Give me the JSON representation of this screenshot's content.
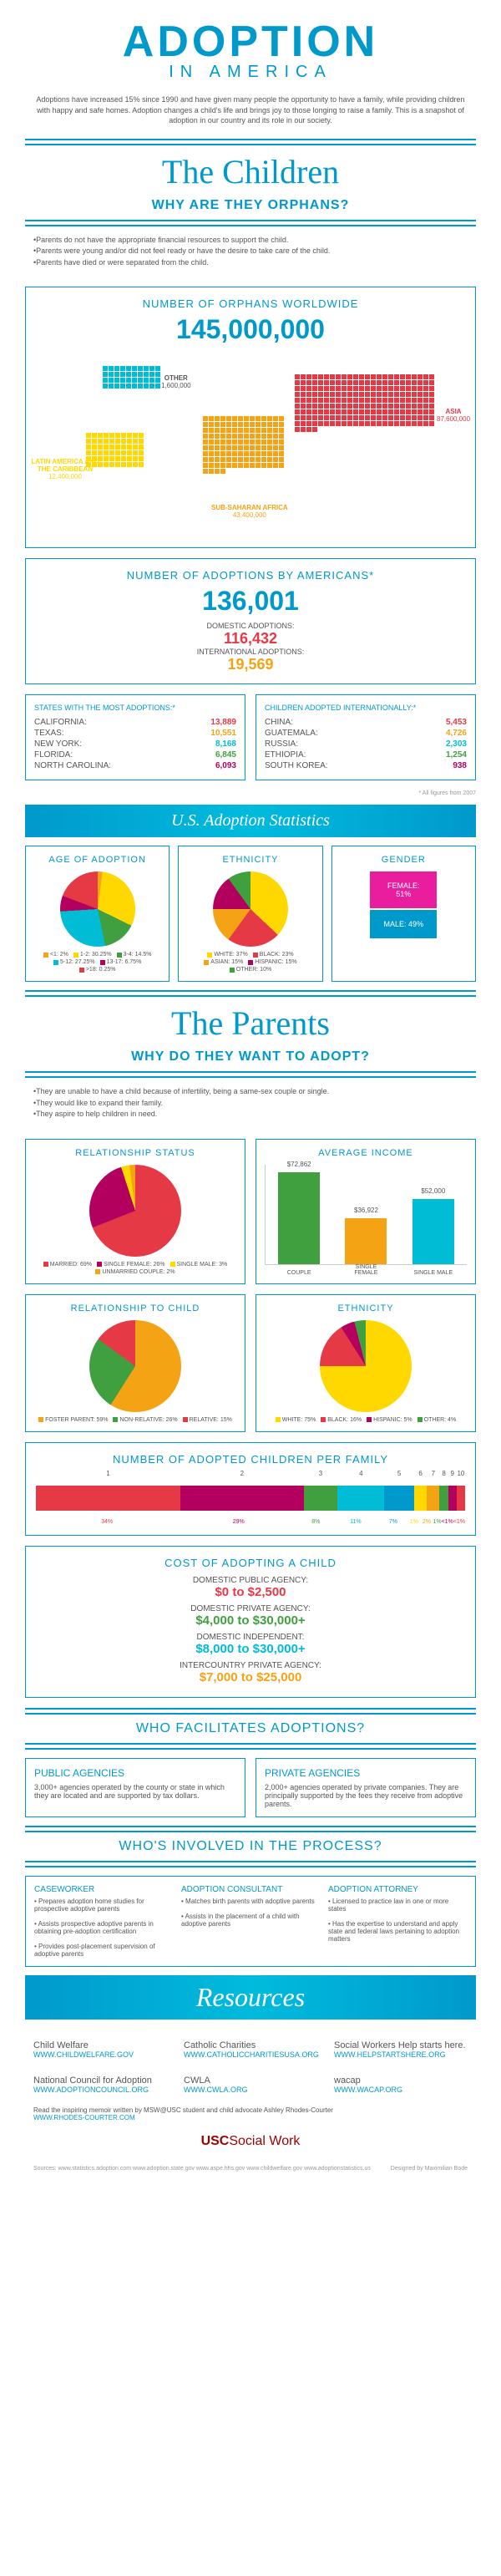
{
  "header": {
    "title": "ADOPTION",
    "subtitle": "IN AMERICA",
    "intro": "Adoptions have increased 15% since 1990 and have given many people the opportunity to have a family, while providing children with happy and safe homes. Adoption changes a child's life and brings joy to those longing to raise a family. This is a snapshot of adoption in our country and its role in our society."
  },
  "children": {
    "title": "The Children",
    "subtitle": "WHY ARE THEY ORPHANS?",
    "bullets": [
      "Parents do not have the appropriate financial resources to support the child.",
      "Parents were young and/or did not feel ready or have the desire to take care of the child.",
      "Parents have died or were separated from the child."
    ]
  },
  "orphans": {
    "title": "NUMBER OF ORPHANS WORLDWIDE",
    "total": "145,000,000",
    "regions": {
      "asia": {
        "label": "ASIA",
        "value": "87,600,000",
        "color": "#e63946"
      },
      "africa": {
        "label": "SUB-SAHARAN AFRICA",
        "value": "43,400,000",
        "color": "#f4a315"
      },
      "latin": {
        "label": "LATIN AMERICA AND THE CARIBBEAN",
        "value": "12,400,000",
        "color": "#ffd800"
      },
      "other": {
        "label": "OTHER",
        "value": "1,600,000",
        "color": "#00bcd4"
      }
    }
  },
  "adoptionsNum": {
    "title": "NUMBER OF ADOPTIONS BY AMERICANS*",
    "total": "136,001",
    "domestic": {
      "label": "DOMESTIC ADOPTIONS:",
      "value": "116,432",
      "color": "#e63946"
    },
    "intl": {
      "label": "INTERNATIONAL ADOPTIONS:",
      "value": "19,569",
      "color": "#f4a315"
    }
  },
  "states": {
    "title": "STATES WITH THE MOST ADOPTIONS:*",
    "rows": [
      {
        "name": "CALIFORNIA:",
        "val": "13,889",
        "color": "#e63946"
      },
      {
        "name": "TEXAS:",
        "val": "10,551",
        "color": "#f4a315"
      },
      {
        "name": "NEW YORK:",
        "val": "8,168",
        "color": "#00bcd4"
      },
      {
        "name": "FLORIDA:",
        "val": "6,845",
        "color": "#40a040"
      },
      {
        "name": "NORTH CAROLINA:",
        "val": "6,093",
        "color": "#b3005e"
      }
    ]
  },
  "intlKids": {
    "title": "CHILDREN ADOPTED INTERNATIONALLY:*",
    "rows": [
      {
        "name": "CHINA:",
        "val": "5,453",
        "color": "#e63946"
      },
      {
        "name": "GUATEMALA:",
        "val": "4,726",
        "color": "#f4a315"
      },
      {
        "name": "RUSSIA:",
        "val": "2,303",
        "color": "#00bcd4"
      },
      {
        "name": "ETHIOPIA:",
        "val": "1,254",
        "color": "#40a040"
      },
      {
        "name": "SOUTH KOREA:",
        "val": "938",
        "color": "#b3005e"
      }
    ]
  },
  "footnote": "* All figures from 2007",
  "statsBanner": "U.S. Adoption Statistics",
  "age": {
    "title": "AGE OF ADOPTION",
    "segs": [
      {
        "l": "<1:",
        "v": "2%",
        "c": "#f4a315"
      },
      {
        "l": "1-2:",
        "v": "30.25%",
        "c": "#ffd800"
      },
      {
        "l": "3-4:",
        "v": "14.5%",
        "c": "#40a040"
      },
      {
        "l": "5-12:",
        "v": "27.25%",
        "c": "#00bcd4"
      },
      {
        "l": "13-17:",
        "v": "6.75%",
        "c": "#b3005e"
      },
      {
        "l": ">18:",
        "v": "0.25%",
        "c": "#e63946"
      }
    ]
  },
  "ethnicity": {
    "title": "ETHNICITY",
    "segs": [
      {
        "l": "WHITE:",
        "v": "37%",
        "c": "#ffd800"
      },
      {
        "l": "BLACK:",
        "v": "23%",
        "c": "#e63946"
      },
      {
        "l": "ASIAN:",
        "v": "15%",
        "c": "#f4a315"
      },
      {
        "l": "HISPANIC:",
        "v": "15%",
        "c": "#b3005e"
      },
      {
        "l": "OTHER:",
        "v": "10%",
        "c": "#40a040"
      }
    ]
  },
  "gender": {
    "title": "GENDER",
    "female": {
      "l": "FEMALE:",
      "v": "51%",
      "c": "#e91e9e"
    },
    "male": {
      "l": "MALE:",
      "v": "49%",
      "c": "#0099cc"
    }
  },
  "parents": {
    "title": "The Parents",
    "subtitle": "WHY DO THEY WANT TO ADOPT?",
    "bullets": [
      "They are unable to have a child because of infertility, being a same-sex couple or single.",
      "They would like to expand their family.",
      "They aspire to help children in need."
    ]
  },
  "relationship": {
    "title": "RELATIONSHIP STATUS",
    "segs": [
      {
        "l": "MARRIED:",
        "v": "69%",
        "c": "#e63946"
      },
      {
        "l": "SINGLE FEMALE:",
        "v": "26%",
        "c": "#b3005e"
      },
      {
        "l": "SINGLE MALE:",
        "v": "3%",
        "c": "#ffd800"
      },
      {
        "l": "UNMARRIED COUPLE:",
        "v": "2%",
        "c": "#f4a315"
      }
    ]
  },
  "income": {
    "title": "AVERAGE INCOME",
    "bars": [
      {
        "l": "COUPLE",
        "v": "$72,862",
        "h": 110,
        "c": "#40a040"
      },
      {
        "l": "SINGLE FEMALE",
        "v": "$36,922",
        "h": 55,
        "c": "#f4a315"
      },
      {
        "l": "SINGLE MALE",
        "v": "$52,000",
        "h": 78,
        "c": "#00bcd4"
      }
    ],
    "yticks": [
      "80,000",
      "70,000",
      "60,000",
      "50,000",
      "40,000",
      "30,000",
      "20,000",
      "10,000",
      "0"
    ]
  },
  "relChild": {
    "title": "RELATIONSHIP TO CHILD",
    "segs": [
      {
        "l": "FOSTER PARENT:",
        "v": "59%",
        "c": "#f4a315"
      },
      {
        "l": "NON-RELATIVE:",
        "v": "26%",
        "c": "#40a040"
      },
      {
        "l": "RELATIVE:",
        "v": "15%",
        "c": "#e63946"
      }
    ]
  },
  "parentEth": {
    "title": "ETHNICITY",
    "segs": [
      {
        "l": "WHITE:",
        "v": "75%",
        "c": "#ffd800"
      },
      {
        "l": "BLACK:",
        "v": "16%",
        "c": "#e63946"
      },
      {
        "l": "HISPANIC:",
        "v": "5%",
        "c": "#b3005e"
      },
      {
        "l": "OTHER:",
        "v": "4%",
        "c": "#40a040"
      }
    ]
  },
  "perFamily": {
    "title": "NUMBER OF ADOPTED CHILDREN PER FAMILY",
    "segs": [
      {
        "n": "1",
        "v": "34%",
        "c": "#e63946",
        "w": 34
      },
      {
        "n": "2",
        "v": "29%",
        "c": "#b3005e",
        "w": 29
      },
      {
        "n": "3",
        "v": "8%",
        "c": "#40a040",
        "w": 8
      },
      {
        "n": "4",
        "v": "11%",
        "c": "#00bcd4",
        "w": 11
      },
      {
        "n": "5",
        "v": "7%",
        "c": "#0099cc",
        "w": 7
      },
      {
        "n": "6",
        "v": "1%",
        "c": "#ffd800",
        "w": 3
      },
      {
        "n": "7",
        "v": "2%",
        "c": "#f4a315",
        "w": 3
      },
      {
        "n": "8",
        "v": "1%",
        "c": "#40a040",
        "w": 2
      },
      {
        "n": "9",
        "v": "<1%",
        "c": "#b3005e",
        "w": 2
      },
      {
        "n": "10",
        "v": "<1%",
        "c": "#e63946",
        "w": 2
      }
    ]
  },
  "cost": {
    "title": "COST OF ADOPTING A CHILD",
    "rows": [
      {
        "l": "DOMESTIC PUBLIC AGENCY:",
        "v": "$0 to $2,500",
        "c": "#e63946"
      },
      {
        "l": "DOMESTIC PRIVATE AGENCY:",
        "v": "$4,000 to $30,000+",
        "c": "#40a040"
      },
      {
        "l": "DOMESTIC INDEPENDENT:",
        "v": "$8,000 to $30,000+",
        "c": "#00bcd4"
      },
      {
        "l": "INTERCOUNTRY PRIVATE AGENCY:",
        "v": "$7,000 to $25,000",
        "c": "#f4a315"
      }
    ]
  },
  "facilitates": {
    "title": "WHO FACILITATES ADOPTIONS?",
    "public": {
      "title": "PUBLIC AGENCIES",
      "text": "3,000+ agencies operated by the county or state in which they are located and are supported by tax dollars."
    },
    "private": {
      "title": "PRIVATE AGENCIES",
      "text": "2,000+ agencies operated by private companies. They are principally supported by the fees they receive from adoptive parents."
    }
  },
  "process": {
    "title": "WHO'S INVOLVED IN THE PROCESS?",
    "roles": [
      {
        "title": "CASEWORKER",
        "items": [
          "Prepares adoption home studies for prospective adoptive parents",
          "Assists prospective adoptive parents in obtaining pre-adoption certification",
          "Provides post-placement supervision of adoptive parents"
        ]
      },
      {
        "title": "ADOPTION CONSULTANT",
        "items": [
          "Matches birth parents with adoptive parents",
          "Assists in the placement of a child with adoptive parents"
        ]
      },
      {
        "title": "ADOPTION ATTORNEY",
        "items": [
          "Licensed to practice law in one or more states",
          "Has the expertise to understand and apply state and federal laws pertaining to adoption matters"
        ]
      }
    ]
  },
  "resourcesBanner": "Resources",
  "resources": [
    {
      "name": "Child Welfare",
      "url": "WWW.CHILDWELFARE.GOV"
    },
    {
      "name": "Catholic Charities",
      "url": "WWW.CATHOLICCHARITIESUSA.ORG"
    },
    {
      "name": "Social Workers Help starts here.",
      "url": "WWW.HELPSTARTSHERE.ORG"
    },
    {
      "name": "National Council for Adoption",
      "url": "WWW.ADOPTIONCOUNCIL.ORG"
    },
    {
      "name": "CWLA",
      "url": "WWW.CWLA.ORG"
    },
    {
      "name": "wacap",
      "url": "WWW.WACAP.ORG"
    }
  ],
  "memoir": {
    "text": "Read the inspiring memoir written by MSW@USC student and child advocate Ashley Rhodes-Courter",
    "url": "WWW.RHODES-COURTER.COM"
  },
  "footer": "USCSocial Work",
  "sources": {
    "label": "Sources:",
    "list": [
      "www.statistics.adoption.com",
      "www.adoption.state.gov",
      "www.aspe.hhs.gov",
      "www.childwelfare.gov",
      "www.adoptionstatistics.us"
    ]
  },
  "designer": "Designed by Maximilian Bode"
}
